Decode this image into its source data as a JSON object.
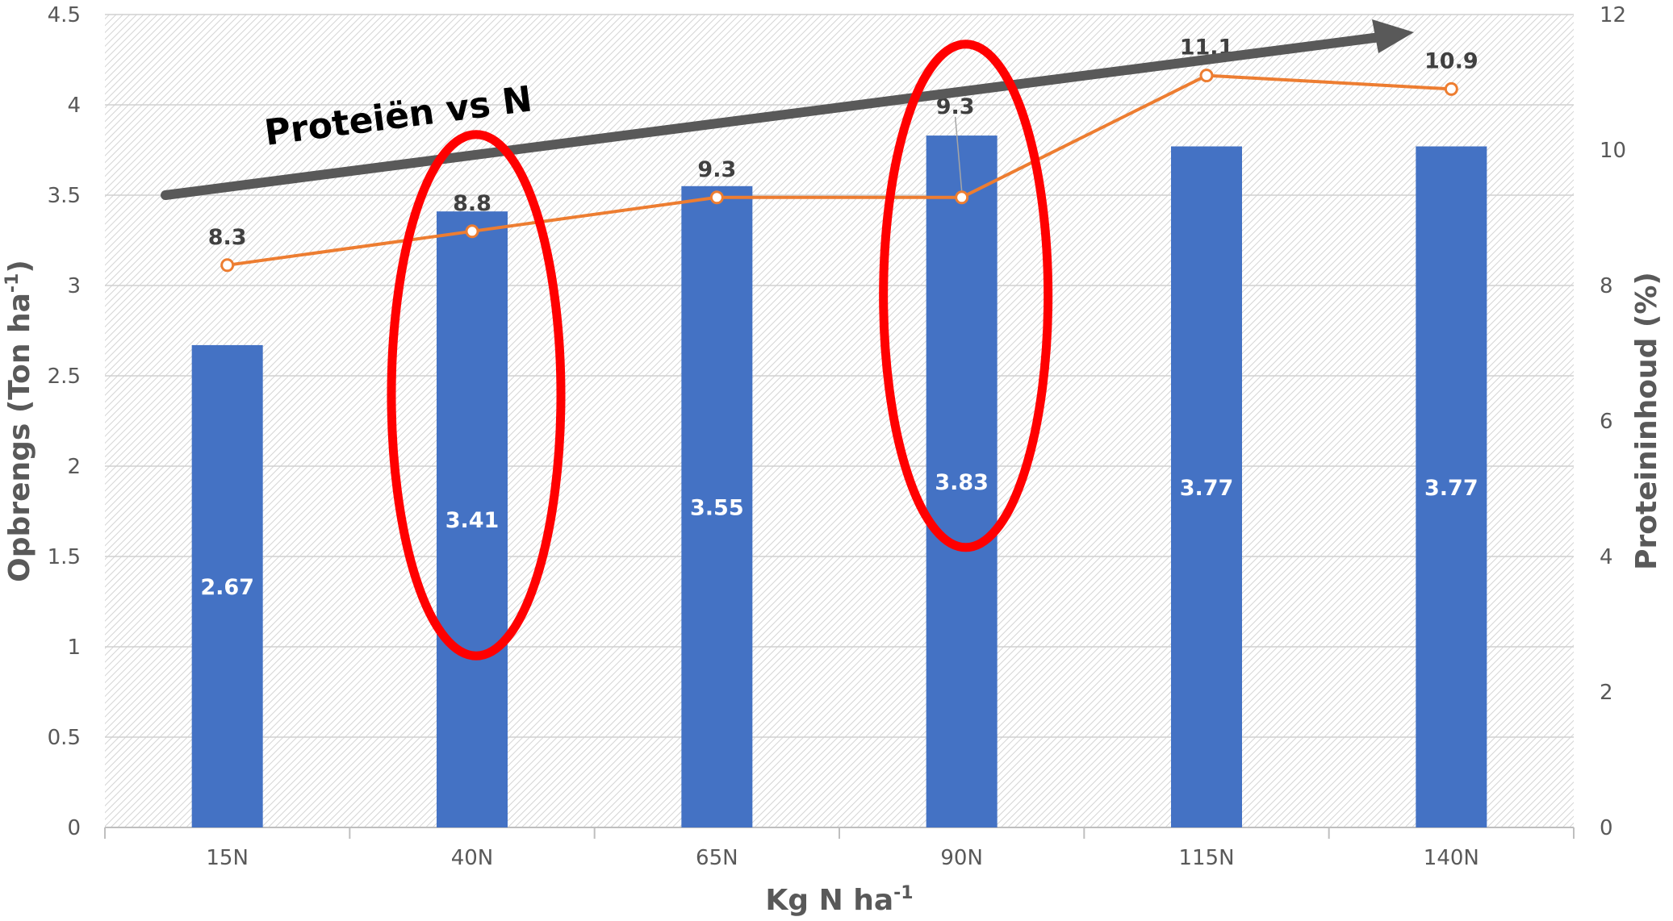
{
  "chart_data": {
    "type": "bar",
    "categories": [
      "15N",
      "40N",
      "65N",
      "90N",
      "115N",
      "140N"
    ],
    "series": [
      {
        "type": "bar",
        "axis": "left",
        "values": [
          2.67,
          3.41,
          3.55,
          3.83,
          3.77,
          3.77
        ],
        "labels": [
          "2.67",
          "3.41",
          "3.55",
          "3.83",
          "3.77",
          "3.77"
        ],
        "color": "#4472C4"
      },
      {
        "type": "line",
        "axis": "right",
        "values": [
          8.3,
          8.8,
          9.3,
          9.3,
          11.1,
          10.9
        ],
        "labels": [
          "8.3",
          "8.8",
          "9.3",
          "9.3",
          "11.1",
          "10.9"
        ],
        "color": "#ED7D31"
      }
    ],
    "xlabel": "Kg N ha",
    "xlabel_sup": "-1",
    "ylabel_left": "Opbrengs (Ton ha",
    "ylabel_left_sup": "-1",
    "ylabel_left_end": ")",
    "ylabel_right": "Proteininhoud (%)",
    "ylim_left": [
      0,
      4.5
    ],
    "ylim_right": [
      0,
      12
    ],
    "yticks_left": [
      "0",
      "0.5",
      "1",
      "1.5",
      "2",
      "2.5",
      "3",
      "3.5",
      "4",
      "4.5"
    ],
    "yticks_right": [
      "0",
      "2",
      "4",
      "6",
      "8",
      "10",
      "12"
    ],
    "grid": true,
    "annotations": {
      "trend_text": "Proteiën vs N",
      "trend_arrow_color": "#595959",
      "highlight_color": "#FF0000",
      "highlighted_categories": [
        "40N",
        "90N"
      ]
    }
  }
}
